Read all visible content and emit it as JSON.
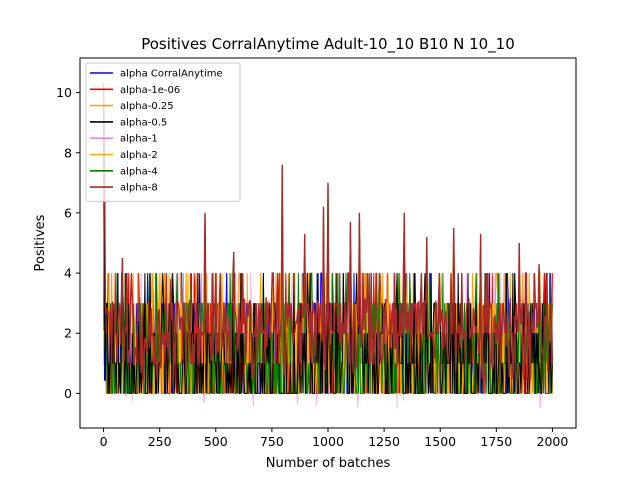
{
  "chart_data": {
    "type": "line",
    "title": "Positives CorralAnytime Adult-10_10 B10 N 10_10",
    "xlabel": "Number of batches",
    "ylabel": "Positives",
    "xlim": [
      -105,
      2105
    ],
    "ylim": [
      -1.15,
      11.15
    ],
    "xticks": [
      0,
      250,
      500,
      750,
      1000,
      1250,
      1500,
      1750,
      2000
    ],
    "yticks": [
      0,
      2,
      4,
      6,
      8,
      10
    ],
    "xtick_labels": [
      "0",
      "250",
      "500",
      "750",
      "1000",
      "1250",
      "1500",
      "1750",
      "2000"
    ],
    "ytick_labels": [
      "0",
      "2",
      "4",
      "6",
      "8",
      "10"
    ],
    "grid": false,
    "legend_position": "top-left",
    "x_range": [
      0,
      2000
    ],
    "series": [
      {
        "name": "alpha CorralAnytime",
        "color": "#0000ff"
      },
      {
        "name": "alpha-1e-06",
        "color": "#ff0000"
      },
      {
        "name": "alpha-0.25",
        "color": "#ffa500"
      },
      {
        "name": "alpha-0.5",
        "color": "#000000"
      },
      {
        "name": "alpha-1",
        "color": "#ee82ee"
      },
      {
        "name": "alpha-2",
        "color": "#ffa500"
      },
      {
        "name": "alpha-4",
        "color": "#008000"
      },
      {
        "name": "alpha-8",
        "color": "#a52a2a"
      }
    ],
    "peaks": [
      {
        "x": 1,
        "y": 10.3
      },
      {
        "x": 3,
        "y": 7.7
      },
      {
        "x": 85,
        "y": 4.5
      },
      {
        "x": 300,
        "y": 3.8
      },
      {
        "x": 450,
        "y": 6.0
      },
      {
        "x": 580,
        "y": 4.7
      },
      {
        "x": 795,
        "y": 7.6
      },
      {
        "x": 895,
        "y": 5.3
      },
      {
        "x": 980,
        "y": 6.2
      },
      {
        "x": 1000,
        "y": 7.0
      },
      {
        "x": 1100,
        "y": 5.7
      },
      {
        "x": 1140,
        "y": 6.0
      },
      {
        "x": 1340,
        "y": 6.0
      },
      {
        "x": 1440,
        "y": 5.2
      },
      {
        "x": 1560,
        "y": 5.5
      },
      {
        "x": 1680,
        "y": 5.3
      },
      {
        "x": 1850,
        "y": 5.0
      },
      {
        "x": 1940,
        "y": 4.3
      }
    ]
  }
}
